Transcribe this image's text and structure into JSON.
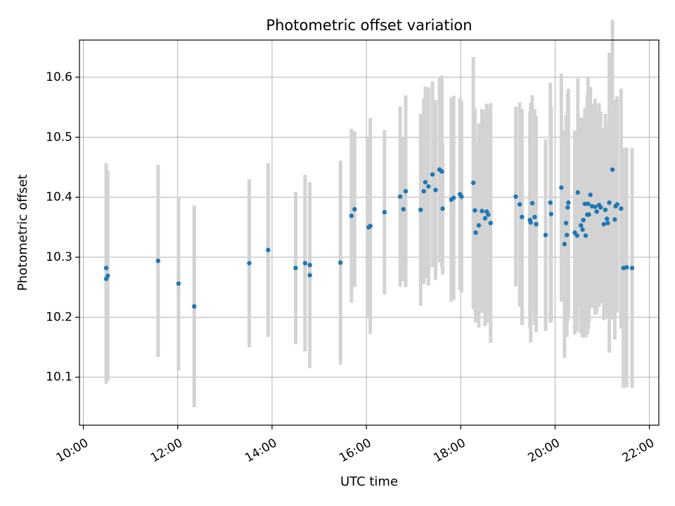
{
  "chart_data": {
    "type": "scatter",
    "title": "Photometric offset variation",
    "xlabel": "UTC time",
    "ylabel": "Photometric offset",
    "x_tick_labels": [
      "10:00",
      "12:00",
      "14:00",
      "16:00",
      "18:00",
      "20:00",
      "22:00"
    ],
    "y_tick_labels": [
      "10.1",
      "10.2",
      "10.3",
      "10.4",
      "10.5",
      "10.6"
    ],
    "xlim": [
      "09:55",
      "22:12"
    ],
    "ylim": [
      10.02,
      10.662
    ],
    "grid": true,
    "colors": {
      "point": "#1f77b4",
      "errorbar": "#d3d3d3",
      "grid": "#b0b0b0"
    },
    "series": [
      {
        "x": [
          "10:29",
          "10:29",
          "10:31",
          "11:35",
          "12:01",
          "12:21",
          "13:31",
          "13:55",
          "14:30",
          "14:42",
          "14:48",
          "14:48",
          "15:27",
          "15:41",
          "15:45",
          "16:03",
          "16:05",
          "16:23",
          "16:43",
          "16:47",
          "16:50",
          "17:09",
          "17:13",
          "17:15",
          "17:19",
          "17:24",
          "17:28",
          "17:33",
          "17:37",
          "17:36",
          "17:48",
          "17:51",
          "17:59",
          "18:01",
          "18:16",
          "18:18",
          "18:19",
          "18:23",
          "18:27",
          "18:31",
          "18:33",
          "18:35",
          "18:38",
          "19:10",
          "19:15",
          "19:18",
          "19:28",
          "19:29",
          "19:31",
          "19:34",
          "19:36",
          "19:48",
          "19:54",
          "19:55",
          "20:08",
          "20:12",
          "20:14",
          "20:15",
          "20:16",
          "20:17",
          "20:25",
          "20:28",
          "20:29",
          "20:33",
          "20:35",
          "20:36",
          "20:38",
          "20:39",
          "20:41",
          "20:42",
          "20:43",
          "20:45",
          "20:47",
          "20:51",
          "20:53",
          "20:56",
          "20:58",
          "21:02",
          "21:04",
          "21:06",
          "21:07",
          "21:09",
          "21:13",
          "21:16",
          "21:17",
          "21:19",
          "21:24",
          "21:27",
          "21:31",
          "21:38"
        ],
        "y": [
          10.282,
          10.264,
          10.269,
          10.294,
          10.256,
          10.218,
          10.29,
          10.312,
          10.282,
          10.29,
          10.287,
          10.27,
          10.291,
          10.369,
          10.38,
          10.35,
          10.352,
          10.375,
          10.401,
          10.38,
          10.41,
          10.379,
          10.41,
          10.425,
          10.418,
          10.438,
          10.412,
          10.446,
          10.381,
          10.443,
          10.396,
          10.399,
          10.405,
          10.401,
          10.424,
          10.378,
          10.341,
          10.353,
          10.377,
          10.365,
          10.376,
          10.371,
          10.357,
          10.401,
          10.388,
          10.367,
          10.362,
          10.358,
          10.39,
          10.367,
          10.355,
          10.337,
          10.391,
          10.372,
          10.416,
          10.322,
          10.357,
          10.337,
          10.383,
          10.391,
          10.341,
          10.336,
          10.408,
          10.353,
          10.346,
          10.362,
          10.389,
          10.336,
          10.371,
          10.389,
          10.371,
          10.404,
          10.385,
          10.384,
          10.376,
          10.387,
          10.383,
          10.355,
          10.379,
          10.364,
          10.357,
          10.391,
          10.446,
          10.363,
          10.385,
          10.388,
          10.381,
          10.282,
          10.283,
          10.282
        ],
        "yerr": [
          0.175,
          0.175,
          0.175,
          0.16,
          0.145,
          0.168,
          0.14,
          0.145,
          0.127,
          0.147,
          0.135,
          0.155,
          0.17,
          0.145,
          0.13,
          0.15,
          0.18,
          0.137,
          0.15,
          0.12,
          0.16,
          0.16,
          0.155,
          0.16,
          0.165,
          0.155,
          0.15,
          0.155,
          0.11,
          0.16,
          0.17,
          0.17,
          0.16,
          0.16,
          0.21,
          0.17,
          0.15,
          0.17,
          0.17,
          0.18,
          0.18,
          0.18,
          0.2,
          0.15,
          0.17,
          0.18,
          0.18,
          0.2,
          0.18,
          0.18,
          0.18,
          0.16,
          0.2,
          0.18,
          0.19,
          0.19,
          0.18,
          0.17,
          0.19,
          0.19,
          0.17,
          0.16,
          0.19,
          0.18,
          0.18,
          0.17,
          0.16,
          0.17,
          0.2,
          0.21,
          0.18,
          0.18,
          0.17,
          0.18,
          0.17,
          0.17,
          0.16,
          0.16,
          0.16,
          0.16,
          0.16,
          0.25,
          0.25,
          0.2,
          0.17,
          0.18,
          0.2,
          0.2,
          0.2,
          0.2
        ]
      }
    ]
  }
}
